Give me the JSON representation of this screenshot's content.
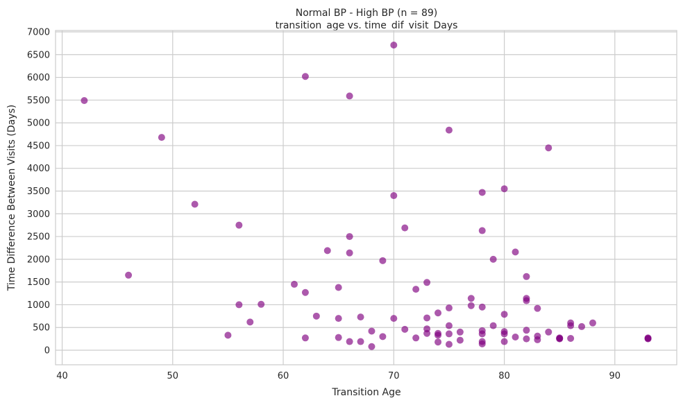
{
  "chart_data": {
    "type": "scatter",
    "title": "Normal BP - High BP (n = 89)",
    "subtitle": "transition_age vs. time_dif_visit_Days",
    "xlabel": "Transition Age",
    "ylabel": "Time Difference Between Visits (Days)",
    "xlim": [
      39.4,
      95.6
    ],
    "ylim": [
      -320,
      7030
    ],
    "xticks": [
      40,
      50,
      60,
      70,
      80,
      90
    ],
    "yticks": [
      0,
      500,
      1000,
      1500,
      2000,
      2500,
      3000,
      3500,
      4000,
      4500,
      5000,
      5500,
      6000,
      6500,
      7000
    ],
    "grid": true,
    "marker_color": "#800080",
    "marker_alpha": 0.65,
    "points": [
      {
        "x": 42,
        "y": 5490
      },
      {
        "x": 46,
        "y": 1650
      },
      {
        "x": 49,
        "y": 4680
      },
      {
        "x": 52,
        "y": 3210
      },
      {
        "x": 55,
        "y": 330
      },
      {
        "x": 56,
        "y": 2750
      },
      {
        "x": 56,
        "y": 1000
      },
      {
        "x": 57,
        "y": 620
      },
      {
        "x": 58,
        "y": 1010
      },
      {
        "x": 61,
        "y": 1450
      },
      {
        "x": 62,
        "y": 6020
      },
      {
        "x": 62,
        "y": 1270
      },
      {
        "x": 62,
        "y": 270
      },
      {
        "x": 63,
        "y": 750
      },
      {
        "x": 64,
        "y": 2190
      },
      {
        "x": 65,
        "y": 1380
      },
      {
        "x": 65,
        "y": 700
      },
      {
        "x": 65,
        "y": 280
      },
      {
        "x": 66,
        "y": 5590
      },
      {
        "x": 66,
        "y": 2500
      },
      {
        "x": 66,
        "y": 2140
      },
      {
        "x": 66,
        "y": 190
      },
      {
        "x": 67,
        "y": 730
      },
      {
        "x": 67,
        "y": 190
      },
      {
        "x": 68,
        "y": 420
      },
      {
        "x": 68,
        "y": 80
      },
      {
        "x": 69,
        "y": 1970
      },
      {
        "x": 69,
        "y": 300
      },
      {
        "x": 70,
        "y": 6710
      },
      {
        "x": 70,
        "y": 3400
      },
      {
        "x": 70,
        "y": 700
      },
      {
        "x": 71,
        "y": 2690
      },
      {
        "x": 71,
        "y": 460
      },
      {
        "x": 72,
        "y": 1340
      },
      {
        "x": 72,
        "y": 270
      },
      {
        "x": 73,
        "y": 1490
      },
      {
        "x": 73,
        "y": 710
      },
      {
        "x": 73,
        "y": 470
      },
      {
        "x": 73,
        "y": 370
      },
      {
        "x": 74,
        "y": 820
      },
      {
        "x": 74,
        "y": 370
      },
      {
        "x": 74,
        "y": 330
      },
      {
        "x": 74,
        "y": 180
      },
      {
        "x": 75,
        "y": 4840
      },
      {
        "x": 75,
        "y": 930
      },
      {
        "x": 75,
        "y": 540
      },
      {
        "x": 75,
        "y": 360
      },
      {
        "x": 75,
        "y": 130
      },
      {
        "x": 76,
        "y": 400
      },
      {
        "x": 76,
        "y": 220
      },
      {
        "x": 77,
        "y": 1140
      },
      {
        "x": 77,
        "y": 980
      },
      {
        "x": 78,
        "y": 3470
      },
      {
        "x": 78,
        "y": 2630
      },
      {
        "x": 78,
        "y": 950
      },
      {
        "x": 78,
        "y": 430
      },
      {
        "x": 78,
        "y": 360
      },
      {
        "x": 78,
        "y": 190
      },
      {
        "x": 78,
        "y": 140
      },
      {
        "x": 79,
        "y": 2000
      },
      {
        "x": 79,
        "y": 540
      },
      {
        "x": 80,
        "y": 3550
      },
      {
        "x": 80,
        "y": 790
      },
      {
        "x": 80,
        "y": 410
      },
      {
        "x": 80,
        "y": 360
      },
      {
        "x": 80,
        "y": 190
      },
      {
        "x": 81,
        "y": 2160
      },
      {
        "x": 81,
        "y": 290
      },
      {
        "x": 82,
        "y": 1620
      },
      {
        "x": 82,
        "y": 1140
      },
      {
        "x": 82,
        "y": 1090
      },
      {
        "x": 82,
        "y": 440
      },
      {
        "x": 82,
        "y": 250
      },
      {
        "x": 83,
        "y": 920
      },
      {
        "x": 83,
        "y": 310
      },
      {
        "x": 83,
        "y": 230
      },
      {
        "x": 84,
        "y": 4450
      },
      {
        "x": 84,
        "y": 400
      },
      {
        "x": 85,
        "y": 270
      },
      {
        "x": 85,
        "y": 260
      },
      {
        "x": 86,
        "y": 600
      },
      {
        "x": 86,
        "y": 540
      },
      {
        "x": 86,
        "y": 260
      },
      {
        "x": 87,
        "y": 520
      },
      {
        "x": 88,
        "y": 600
      },
      {
        "x": 93,
        "y": 270
      },
      {
        "x": 93,
        "y": 260
      },
      {
        "x": 93,
        "y": 250
      },
      {
        "x": 85,
        "y": 250
      }
    ]
  }
}
